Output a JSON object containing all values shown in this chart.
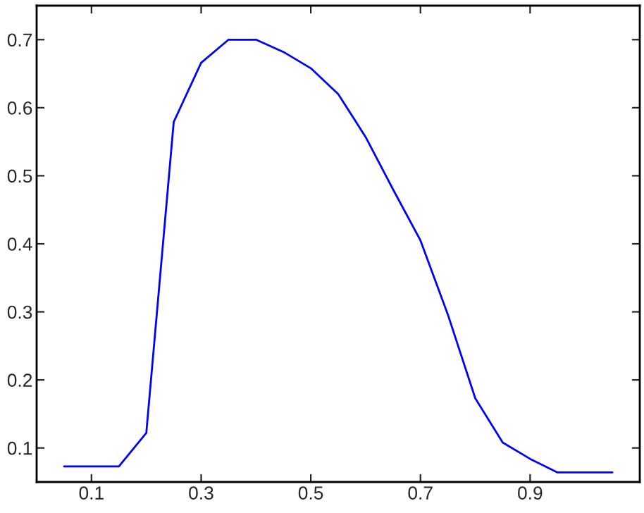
{
  "chart_data": {
    "type": "line",
    "x": [
      0.05,
      0.1,
      0.15,
      0.2,
      0.25,
      0.3,
      0.35,
      0.4,
      0.45,
      0.5,
      0.55,
      0.6,
      0.65,
      0.7,
      0.75,
      0.8,
      0.85,
      0.9,
      0.95,
      1.0,
      1.05
    ],
    "series": [
      {
        "color": "#0000ff",
        "values": [
          0.073,
          0.073,
          0.073,
          0.122,
          0.579,
          0.666,
          0.7,
          0.7,
          0.682,
          0.658,
          0.62,
          0.557,
          0.48,
          0.405,
          0.296,
          0.173,
          0.108,
          0.084,
          0.064,
          0.064,
          0.064
        ]
      }
    ],
    "xlim": [
      0,
      1.1
    ],
    "ylim": [
      0.05,
      0.75
    ],
    "xticks": [
      0.1,
      0.3,
      0.5,
      0.7,
      0.9
    ],
    "yticks": [
      0.1,
      0.2,
      0.3,
      0.4,
      0.5,
      0.6,
      0.7
    ],
    "grid": false,
    "legend": false,
    "marker": "none",
    "line_style": "solid"
  }
}
